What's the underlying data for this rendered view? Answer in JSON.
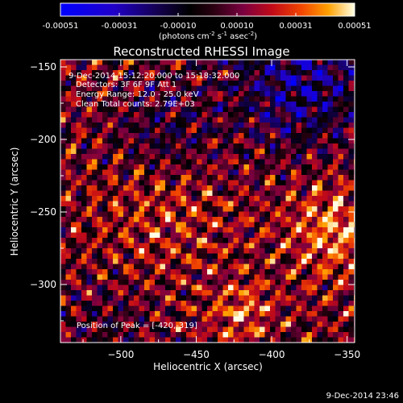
{
  "chart_data": {
    "type": "heatmap",
    "title": "Reconstructed RHESSI Image",
    "xlabel": "Heliocentric X (arcsec)",
    "ylabel": "Heliocentric Y (arcsec)",
    "xlim": [
      -540,
      -345
    ],
    "ylim": [
      -340,
      -145
    ],
    "x_ticks": [
      -500,
      -450,
      -400,
      -350
    ],
    "y_ticks": [
      -150,
      -200,
      -250,
      -300
    ],
    "colorbar": {
      "range": [
        -0.00051,
        0.00051
      ],
      "ticks": [
        "-0.00051",
        "-0.00031",
        "-0.00010",
        "0.00010",
        "0.00031",
        "0.00051"
      ],
      "units_prefix": "(photons cm",
      "units_sup1": "-2",
      "units_mid1": " s",
      "units_sup2": "-1",
      "units_mid2": " asec",
      "units_sup3": "-2",
      "units_suffix": ")"
    },
    "annotations": {
      "line1": "9-Dec-2014 15:12:20.000 to 15:18:32.000",
      "line2": "Detectors: 3F 6F 9F  Att 1",
      "line3": "Energy Range: 12.0 - 25.0 keV",
      "line4": "Clean    Total counts: 2.79E+03",
      "peak": "Position of Peak = [-420,-319]"
    },
    "peak": [
      -420,
      -319
    ],
    "timestamp": "9-Dec-2014 23:46",
    "grid": false
  }
}
